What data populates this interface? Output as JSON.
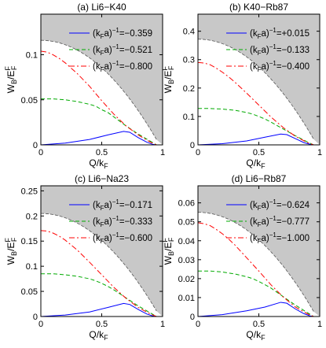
{
  "figure": {
    "xlabel_main": "Q/k",
    "xlabel_sub": "F",
    "ylabel_main": "W",
    "ylabel_sub": "B",
    "ylabel_slash": "/E",
    "ylabel_sup": "F",
    "ylabel_sub2": "F",
    "legend_prefix_main": "(k",
    "legend_prefix_sub": "F",
    "legend_prefix_tail": "a)",
    "legend_exp": "−1",
    "shaded_region_color": "#c8c8c8",
    "series_colors": [
      "#0000ff",
      "#00aa00",
      "#ff0000"
    ],
    "series_dash": [
      "solid",
      "dashed",
      "dashdot"
    ]
  },
  "chart_data": [
    {
      "type": "line",
      "title": "(a) Li6−K40",
      "xlim": [
        0,
        1
      ],
      "ylim": [
        0,
        0.145
      ],
      "xticks": [
        "0",
        "0.5",
        "1"
      ],
      "yticks": [
        {
          "v": 0,
          "label": "0"
        },
        {
          "v": 0.05,
          "label": "0.05"
        },
        {
          "v": 0.1,
          "label": "0.1"
        }
      ],
      "xlabel": "Q/k_F",
      "ylabel": "W_B/E_F^F",
      "legend_values": [
        "=−0.359",
        "=−0.521",
        "=−0.800"
      ],
      "series": [
        {
          "values": [
            [
              0,
              0.0
            ],
            [
              0.2,
              0.002
            ],
            [
              0.4,
              0.006
            ],
            [
              0.55,
              0.011
            ],
            [
              0.68,
              0.015
            ],
            [
              0.73,
              0.014
            ],
            [
              0.8,
              0.008
            ],
            [
              0.87,
              0.003
            ],
            [
              0.92,
              0.0005
            ],
            [
              0.95,
              0.0
            ]
          ]
        },
        {
          "values": [
            [
              0,
              0.051
            ],
            [
              0.1,
              0.051
            ],
            [
              0.2,
              0.05
            ],
            [
              0.3,
              0.048
            ],
            [
              0.4,
              0.045
            ],
            [
              0.45,
              0.043
            ],
            [
              0.5,
              0.039
            ],
            [
              0.55,
              0.036
            ],
            [
              0.6,
              0.031
            ],
            [
              0.7,
              0.021
            ],
            [
              0.8,
              0.012
            ],
            [
              0.9,
              0.004
            ],
            [
              0.95,
              0.0
            ]
          ]
        },
        {
          "values": [
            [
              0,
              0.104
            ],
            [
              0.05,
              0.103
            ],
            [
              0.1,
              0.1
            ],
            [
              0.15,
              0.096
            ],
            [
              0.2,
              0.091
            ],
            [
              0.25,
              0.085
            ],
            [
              0.3,
              0.079
            ],
            [
              0.4,
              0.065
            ],
            [
              0.5,
              0.049
            ],
            [
              0.6,
              0.034
            ],
            [
              0.7,
              0.021
            ],
            [
              0.8,
              0.011
            ],
            [
              0.9,
              0.003
            ],
            [
              0.95,
              0.0
            ]
          ]
        }
      ],
      "boundary": {
        "a": 0.116,
        "b": -0.122,
        "q0": 0.95
      }
    },
    {
      "type": "line",
      "title": "(b) K40−Rb87",
      "xlim": [
        0,
        1
      ],
      "ylim": [
        0,
        0.46
      ],
      "xticks": [
        "0",
        "0.5",
        "1"
      ],
      "yticks": [
        {
          "v": 0,
          "label": "0"
        },
        {
          "v": 0.1,
          "label": "0.1"
        },
        {
          "v": 0.2,
          "label": "0.2"
        },
        {
          "v": 0.3,
          "label": "0.3"
        },
        {
          "v": 0.4,
          "label": "0.4"
        }
      ],
      "xlabel": "Q/k_F",
      "ylabel": "W_B/E_F^F",
      "legend_values": [
        "=+0.015",
        "=−0.133",
        "=−0.400"
      ],
      "series": [
        {
          "values": [
            [
              0,
              0.0
            ],
            [
              0.2,
              0.004
            ],
            [
              0.4,
              0.014
            ],
            [
              0.55,
              0.027
            ],
            [
              0.68,
              0.038
            ],
            [
              0.73,
              0.036
            ],
            [
              0.8,
              0.022
            ],
            [
              0.87,
              0.008
            ],
            [
              0.92,
              0.002
            ],
            [
              0.95,
              0.0
            ]
          ]
        },
        {
          "values": [
            [
              0,
              0.128
            ],
            [
              0.1,
              0.128
            ],
            [
              0.2,
              0.126
            ],
            [
              0.3,
              0.122
            ],
            [
              0.4,
              0.114
            ],
            [
              0.45,
              0.108
            ],
            [
              0.5,
              0.1
            ],
            [
              0.55,
              0.091
            ],
            [
              0.6,
              0.08
            ],
            [
              0.7,
              0.056
            ],
            [
              0.8,
              0.032
            ],
            [
              0.9,
              0.01
            ],
            [
              0.95,
              0.0
            ]
          ]
        },
        {
          "values": [
            [
              0,
              0.29
            ],
            [
              0.05,
              0.288
            ],
            [
              0.1,
              0.282
            ],
            [
              0.15,
              0.27
            ],
            [
              0.2,
              0.256
            ],
            [
              0.25,
              0.24
            ],
            [
              0.3,
              0.222
            ],
            [
              0.4,
              0.182
            ],
            [
              0.5,
              0.14
            ],
            [
              0.6,
              0.098
            ],
            [
              0.7,
              0.061
            ],
            [
              0.8,
              0.03
            ],
            [
              0.9,
              0.008
            ],
            [
              0.95,
              0.0
            ]
          ]
        }
      ],
      "boundary": {
        "a": 0.372,
        "b": -0.39,
        "q0": 0.95
      }
    },
    {
      "type": "line",
      "title": "(c) Li6−Na23",
      "xlim": [
        0,
        1
      ],
      "ylim": [
        0,
        0.26
      ],
      "xticks": [
        "0",
        "0.5",
        "1"
      ],
      "yticks": [
        {
          "v": 0,
          "label": "0"
        },
        {
          "v": 0.05,
          "label": "0.05"
        },
        {
          "v": 0.1,
          "label": "0.1"
        },
        {
          "v": 0.15,
          "label": "0.15"
        },
        {
          "v": 0.2,
          "label": "0.2"
        },
        {
          "v": 0.25,
          "label": "0.25"
        }
      ],
      "xlabel": "Q/k_F",
      "ylabel": "W_B/E_F^F",
      "legend_values": [
        "=−0.171",
        "=−0.333",
        "=−0.600"
      ],
      "series": [
        {
          "values": [
            [
              0,
              0.0
            ],
            [
              0.2,
              0.003
            ],
            [
              0.4,
              0.009
            ],
            [
              0.55,
              0.018
            ],
            [
              0.68,
              0.026
            ],
            [
              0.73,
              0.024
            ],
            [
              0.8,
              0.014
            ],
            [
              0.87,
              0.005
            ],
            [
              0.92,
              0.001
            ],
            [
              0.95,
              0.0
            ]
          ]
        },
        {
          "values": [
            [
              0,
              0.085
            ],
            [
              0.1,
              0.085
            ],
            [
              0.2,
              0.083
            ],
            [
              0.3,
              0.08
            ],
            [
              0.4,
              0.075
            ],
            [
              0.45,
              0.071
            ],
            [
              0.5,
              0.066
            ],
            [
              0.55,
              0.06
            ],
            [
              0.6,
              0.053
            ],
            [
              0.7,
              0.037
            ],
            [
              0.8,
              0.021
            ],
            [
              0.9,
              0.007
            ],
            [
              0.95,
              0.0
            ]
          ]
        },
        {
          "values": [
            [
              0,
              0.171
            ],
            [
              0.05,
              0.17
            ],
            [
              0.1,
              0.166
            ],
            [
              0.15,
              0.16
            ],
            [
              0.2,
              0.152
            ],
            [
              0.25,
              0.142
            ],
            [
              0.3,
              0.132
            ],
            [
              0.4,
              0.108
            ],
            [
              0.5,
              0.083
            ],
            [
              0.6,
              0.058
            ],
            [
              0.7,
              0.036
            ],
            [
              0.8,
              0.018
            ],
            [
              0.9,
              0.005
            ],
            [
              0.95,
              0.0
            ]
          ]
        }
      ],
      "boundary": {
        "a": 0.205,
        "b": -0.215,
        "q0": 0.95
      }
    },
    {
      "type": "line",
      "title": "(d) Li6−Rb87",
      "xlim": [
        0,
        1
      ],
      "ylim": [
        0,
        0.069
      ],
      "xticks": [
        "0",
        "0.5",
        "1"
      ],
      "yticks": [
        {
          "v": 0,
          "label": "0"
        },
        {
          "v": 0.01,
          "label": "0.01"
        },
        {
          "v": 0.02,
          "label": "0.02"
        },
        {
          "v": 0.03,
          "label": "0.03"
        },
        {
          "v": 0.04,
          "label": "0.04"
        },
        {
          "v": 0.05,
          "label": "0.05"
        },
        {
          "v": 0.06,
          "label": "0.06"
        }
      ],
      "xlabel": "Q/k_F",
      "ylabel": "W_B/E_F^F",
      "legend_values": [
        "=−0.624",
        "=−0.777",
        "=−1.000"
      ],
      "series": [
        {
          "values": [
            [
              0,
              0.0
            ],
            [
              0.2,
              0.001
            ],
            [
              0.4,
              0.003
            ],
            [
              0.55,
              0.005
            ],
            [
              0.68,
              0.0075
            ],
            [
              0.73,
              0.007
            ],
            [
              0.8,
              0.004
            ],
            [
              0.87,
              0.0015
            ],
            [
              0.92,
              0.0003
            ],
            [
              0.95,
              0.0
            ]
          ]
        },
        {
          "values": [
            [
              0,
              0.024
            ],
            [
              0.1,
              0.024
            ],
            [
              0.2,
              0.0235
            ],
            [
              0.3,
              0.0225
            ],
            [
              0.4,
              0.021
            ],
            [
              0.45,
              0.02
            ],
            [
              0.5,
              0.0185
            ],
            [
              0.55,
              0.0168
            ],
            [
              0.6,
              0.015
            ],
            [
              0.7,
              0.0105
            ],
            [
              0.8,
              0.006
            ],
            [
              0.9,
              0.002
            ],
            [
              0.95,
              0.0
            ]
          ]
        },
        {
          "values": [
            [
              0,
              0.0495
            ],
            [
              0.05,
              0.049
            ],
            [
              0.1,
              0.048
            ],
            [
              0.15,
              0.046
            ],
            [
              0.2,
              0.0437
            ],
            [
              0.25,
              0.041
            ],
            [
              0.3,
              0.038
            ],
            [
              0.4,
              0.031
            ],
            [
              0.5,
              0.024
            ],
            [
              0.6,
              0.0167
            ],
            [
              0.7,
              0.0103
            ],
            [
              0.8,
              0.005
            ],
            [
              0.9,
              0.0014
            ],
            [
              0.95,
              0.0
            ]
          ]
        }
      ],
      "boundary": {
        "a": 0.055,
        "b": -0.058,
        "q0": 0.95
      }
    }
  ]
}
